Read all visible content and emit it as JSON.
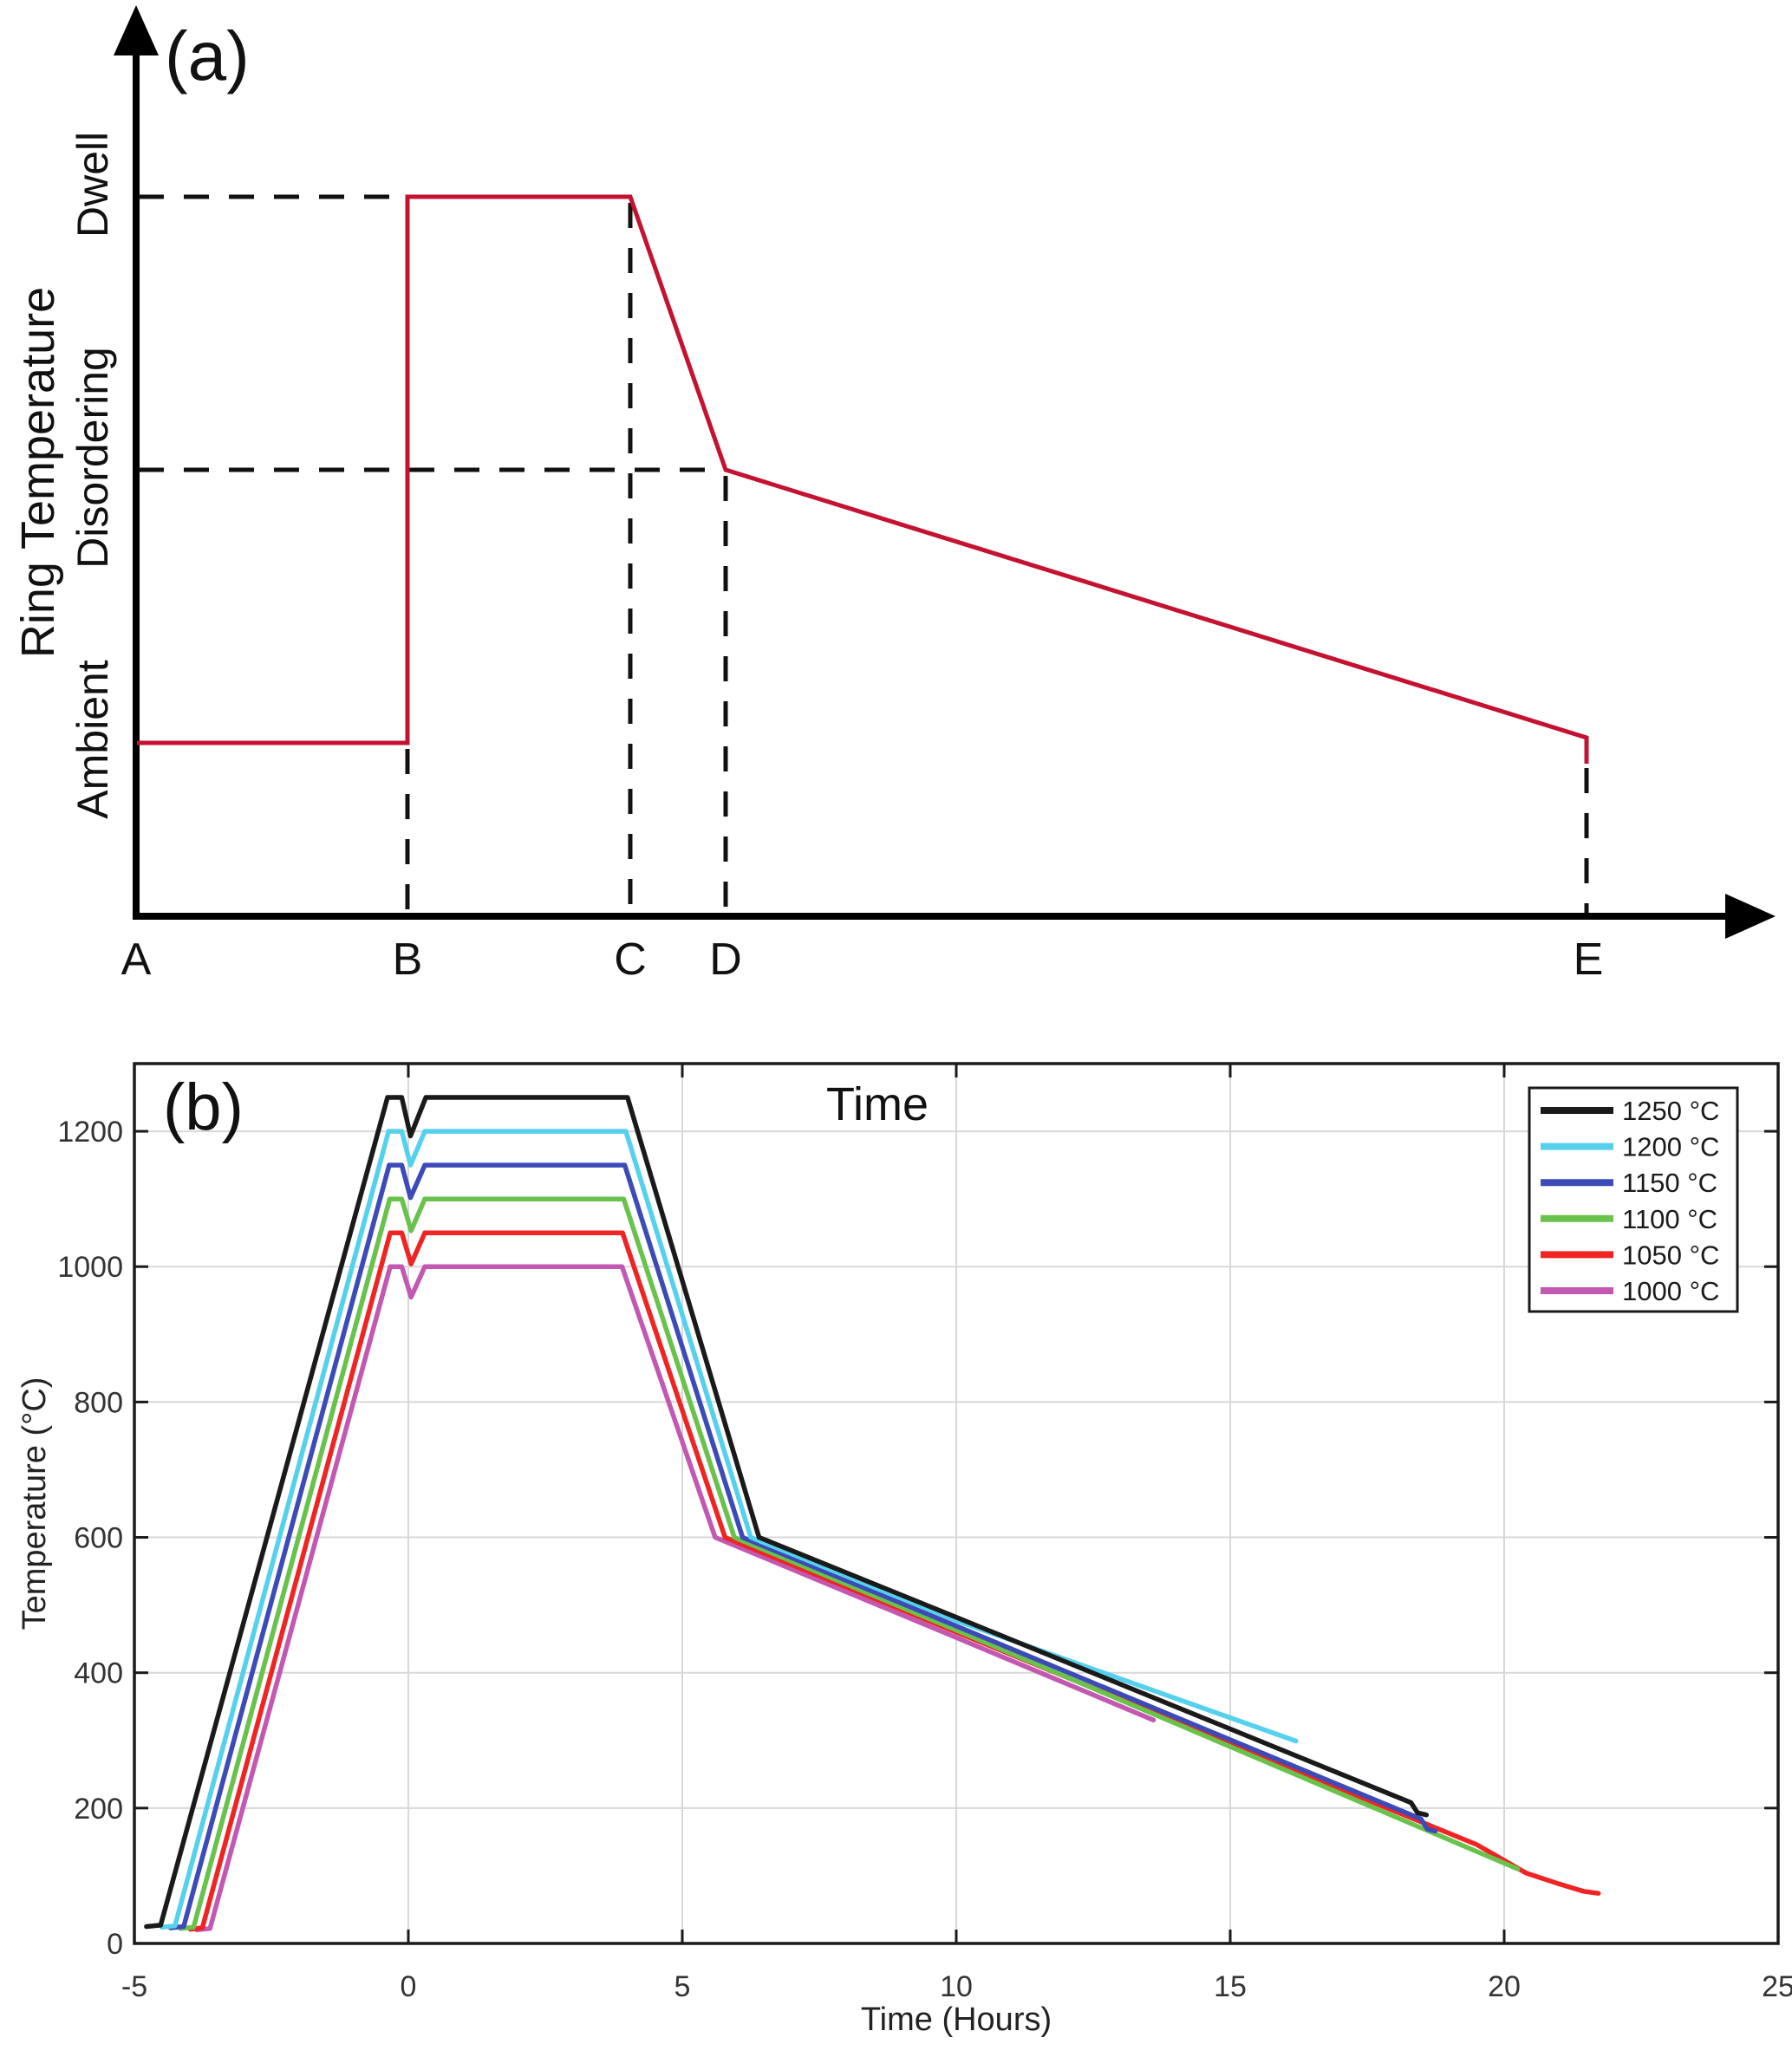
{
  "figure": {
    "description_note": "",
    "background": "#ffffff",
    "axis_color": "#1a1a1a",
    "grid_color": "#d8d8d8"
  },
  "chart_data": [
    {
      "panel": "a",
      "type": "line",
      "label": "(a)",
      "ylabel": "Ring Temperature",
      "xlabel": "Time",
      "y_levels": [
        "Ambient",
        "Disordering",
        "Dwell"
      ],
      "x_points": [
        "A",
        "B",
        "C",
        "D",
        "E"
      ],
      "line_color": "#c41230",
      "profile": [
        [
          "A",
          "Ambient"
        ],
        [
          "B",
          "Ambient"
        ],
        [
          "B",
          "Dwell"
        ],
        [
          "C",
          "Dwell"
        ],
        [
          "D",
          "Disordering"
        ],
        [
          "E",
          "Ambient"
        ]
      ],
      "dashed_guides": [
        "Dwell level from axis to B",
        "Disordering level from axis to D",
        "vertical at B, C, D, E"
      ]
    },
    {
      "panel": "b",
      "type": "line",
      "label": "(b)",
      "xlabel": "Time (Hours)",
      "ylabel": "Temperature (°C)",
      "xlim": [
        -5,
        25
      ],
      "ylim": [
        0,
        1300
      ],
      "xticks": [
        -5,
        0,
        5,
        10,
        15,
        20,
        25
      ],
      "yticks": [
        0,
        200,
        400,
        600,
        800,
        1000,
        1200
      ],
      "grid": true,
      "legend_position": "top-right",
      "series": [
        {
          "name": "1250 °C",
          "dwell_temp_c": 1250,
          "color": "#1a1a1a",
          "points": [
            [
              -4.78,
              25
            ],
            [
              -4.52,
              27
            ],
            [
              -0.38,
              1250
            ],
            [
              -0.12,
              1250
            ],
            [
              0.04,
              1193
            ],
            [
              0.32,
              1250
            ],
            [
              4.0,
              1250
            ],
            [
              6.4,
              600
            ],
            [
              10.0,
              482
            ],
            [
              18.3,
              208
            ],
            [
              18.42,
              193
            ],
            [
              18.58,
              190
            ]
          ]
        },
        {
          "name": "1200 °C",
          "dwell_temp_c": 1200,
          "color": "#55d1ee",
          "points": [
            [
              -4.5,
              24
            ],
            [
              -4.26,
              26
            ],
            [
              -0.36,
              1200
            ],
            [
              -0.12,
              1200
            ],
            [
              0.04,
              1150
            ],
            [
              0.3,
              1200
            ],
            [
              3.97,
              1200
            ],
            [
              6.25,
              600
            ],
            [
              10.0,
              477
            ],
            [
              16.2,
              299
            ]
          ]
        },
        {
          "name": "1150 °C",
          "dwell_temp_c": 1150,
          "color": "#3c4bb8",
          "points": [
            [
              -4.34,
              23
            ],
            [
              -4.1,
              25
            ],
            [
              -0.35,
              1150
            ],
            [
              -0.12,
              1150
            ],
            [
              0.04,
              1102
            ],
            [
              0.3,
              1150
            ],
            [
              3.95,
              1150
            ],
            [
              6.1,
              600
            ],
            [
              10.0,
              469
            ],
            [
              18.48,
              184
            ],
            [
              18.6,
              169
            ],
            [
              18.74,
              166
            ]
          ]
        },
        {
          "name": "1100 °C",
          "dwell_temp_c": 1100,
          "color": "#69c24b",
          "points": [
            [
              -4.16,
              22
            ],
            [
              -3.92,
              24
            ],
            [
              -0.34,
              1100
            ],
            [
              -0.12,
              1100
            ],
            [
              0.05,
              1053
            ],
            [
              0.3,
              1100
            ],
            [
              3.93,
              1100
            ],
            [
              5.95,
              600
            ],
            [
              10.0,
              463
            ],
            [
              20.25,
              110
            ]
          ]
        },
        {
          "name": "1050 °C",
          "dwell_temp_c": 1050,
          "color": "#ef2423",
          "points": [
            [
              -3.98,
              21
            ],
            [
              -3.76,
              23
            ],
            [
              -0.33,
              1050
            ],
            [
              -0.12,
              1050
            ],
            [
              0.05,
              1004
            ],
            [
              0.3,
              1050
            ],
            [
              3.91,
              1050
            ],
            [
              5.78,
              600
            ],
            [
              10.0,
              460
            ],
            [
              19.5,
              146
            ],
            [
              20.4,
              104
            ],
            [
              21.0,
              88
            ],
            [
              21.45,
              77
            ],
            [
              21.72,
              74
            ]
          ]
        },
        {
          "name": "1000 °C",
          "dwell_temp_c": 1000,
          "color": "#c358b3",
          "points": [
            [
              -3.86,
              20
            ],
            [
              -3.62,
              22
            ],
            [
              -0.33,
              1000
            ],
            [
              -0.12,
              1000
            ],
            [
              0.05,
              955
            ],
            [
              0.3,
              1000
            ],
            [
              3.9,
              1000
            ],
            [
              5.6,
              600
            ],
            [
              10.0,
              452
            ],
            [
              13.6,
              330
            ]
          ]
        }
      ]
    }
  ]
}
